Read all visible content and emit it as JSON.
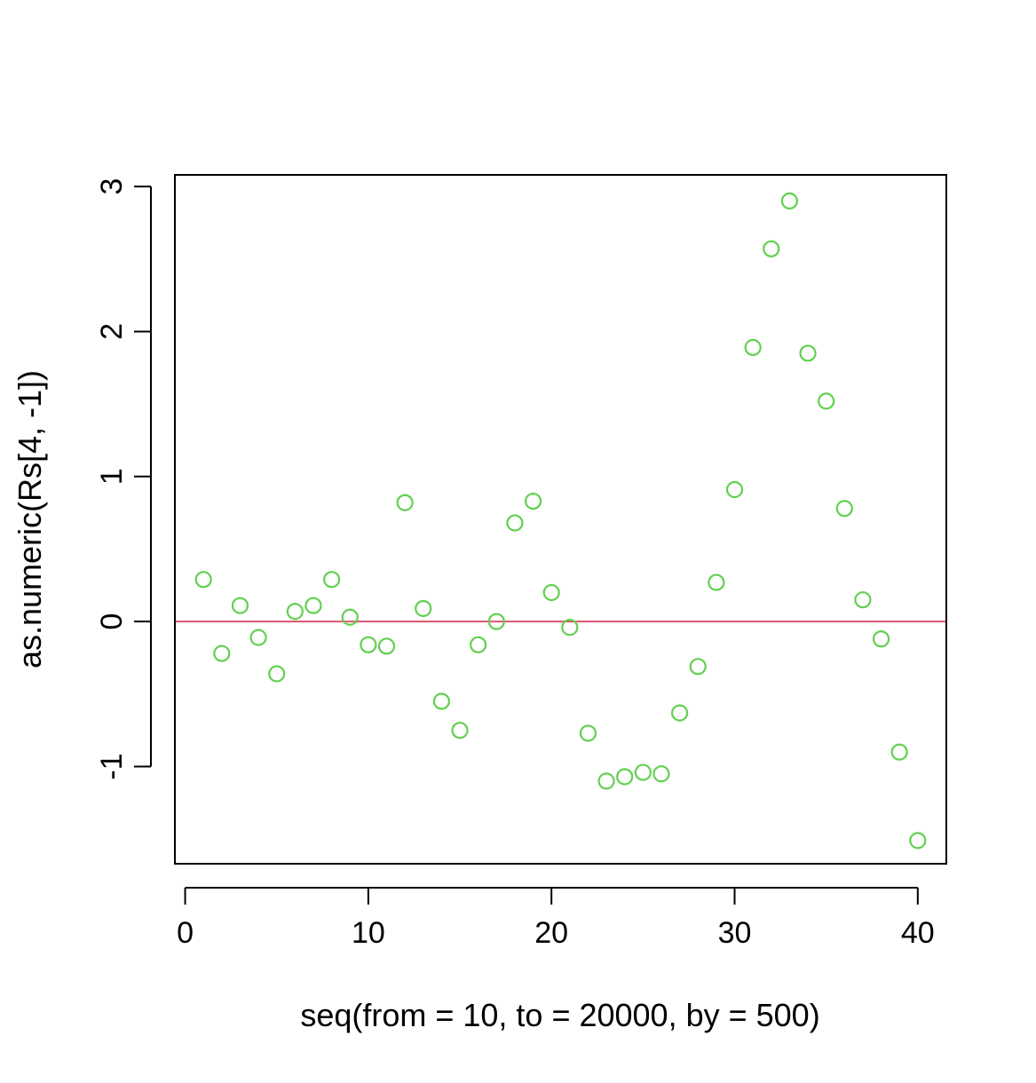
{
  "chart_data": {
    "type": "scatter",
    "title": "",
    "xlabel": "seq(from = 10, to = 20000, by = 500)",
    "ylabel": "as.numeric(Rs[4, -1])",
    "xlim": [
      -0.56,
      41.56
    ],
    "ylim": [
      -1.67,
      3.08
    ],
    "xticks": [
      0,
      10,
      20,
      30,
      40
    ],
    "yticks": [
      -1,
      0,
      1,
      2,
      3
    ],
    "xtick_labels": [
      "0",
      "10",
      "20",
      "30",
      "40"
    ],
    "ytick_labels": [
      "-1",
      "0",
      "1",
      "2",
      "3"
    ],
    "grid": false,
    "reference_line": {
      "y": 0,
      "color": "#DF536B"
    },
    "point_color": "#61D04F",
    "series": [
      {
        "name": "as.numeric(Rs[4, -1])",
        "x": [
          1,
          2,
          3,
          4,
          5,
          6,
          7,
          8,
          9,
          10,
          11,
          12,
          13,
          14,
          15,
          16,
          17,
          18,
          19,
          20,
          21,
          22,
          23,
          24,
          25,
          26,
          27,
          28,
          29,
          30,
          31,
          32,
          33,
          34,
          35,
          36,
          37,
          38,
          39,
          40
        ],
        "y": [
          0.29,
          -0.22,
          0.11,
          -0.11,
          -0.36,
          0.07,
          0.11,
          0.29,
          0.03,
          -0.16,
          -0.17,
          0.82,
          0.09,
          -0.55,
          -0.75,
          -0.16,
          0.0,
          0.68,
          0.83,
          0.2,
          -0.04,
          -0.77,
          -1.1,
          -1.07,
          -1.04,
          -1.05,
          -0.63,
          -0.31,
          0.27,
          0.91,
          1.89,
          2.57,
          2.9,
          1.85,
          1.52,
          0.78,
          0.15,
          -0.12,
          -0.9,
          -1.51
        ]
      }
    ]
  }
}
